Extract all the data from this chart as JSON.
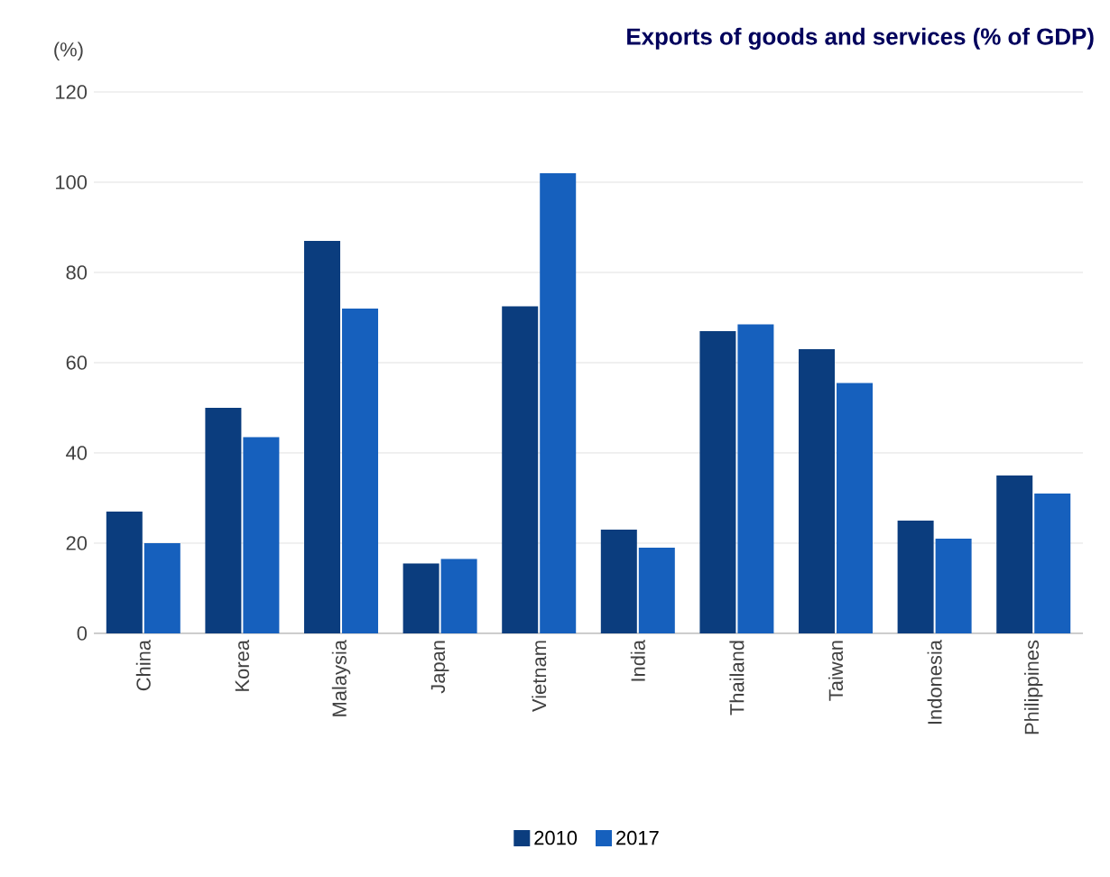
{
  "chart_data": {
    "type": "bar",
    "title": "Exports of goods and services (% of GDP)",
    "ylabel": "(%)",
    "categories": [
      "China",
      "Korea",
      "Malaysia",
      "Japan",
      "Vietnam",
      "India",
      "Thailand",
      "Taiwan",
      "Indonesia",
      "Philippines"
    ],
    "series": [
      {
        "name": "2010",
        "color": "#0b3d7e",
        "values": [
          27,
          50,
          87,
          15.5,
          72.5,
          23,
          67,
          63,
          25,
          35
        ]
      },
      {
        "name": "2017",
        "color": "#1660bd",
        "values": [
          20,
          43.5,
          72,
          16.5,
          102,
          19,
          68.5,
          55.5,
          21,
          31
        ]
      }
    ],
    "ylim": [
      0,
      120
    ],
    "yticks": [
      0,
      20,
      40,
      60,
      80,
      100,
      120
    ],
    "grid": "y",
    "legend": "bottom"
  }
}
